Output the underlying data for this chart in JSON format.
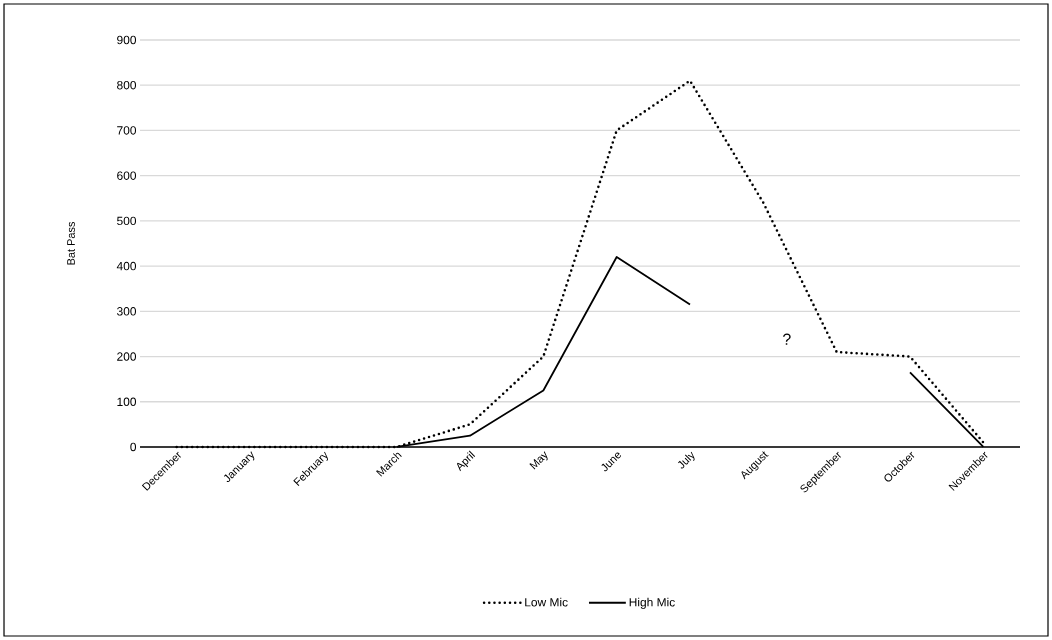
{
  "chart_data": {
    "type": "line",
    "ylabel": "Bat Pass",
    "categories": [
      "December",
      "January",
      "February",
      "March",
      "April",
      "May",
      "June",
      "July",
      "August",
      "September",
      "October",
      "November"
    ],
    "series": [
      {
        "name": "Low Mic",
        "color": "#000000",
        "line_style": "dotted",
        "values": [
          0,
          0,
          0,
          0,
          50,
          200,
          700,
          810,
          540,
          210,
          200,
          10
        ]
      },
      {
        "name": "High Mic",
        "color": "#000000",
        "line_style": "solid",
        "values": [
          null,
          null,
          null,
          0,
          25,
          125,
          420,
          315,
          null,
          null,
          165,
          0
        ]
      }
    ],
    "ylim": [
      0,
      900
    ],
    "yticks": [
      0,
      100,
      200,
      300,
      400,
      500,
      600,
      700,
      800,
      900
    ],
    "grid": "y",
    "legend": "bottom",
    "annotations": [
      "?"
    ]
  }
}
